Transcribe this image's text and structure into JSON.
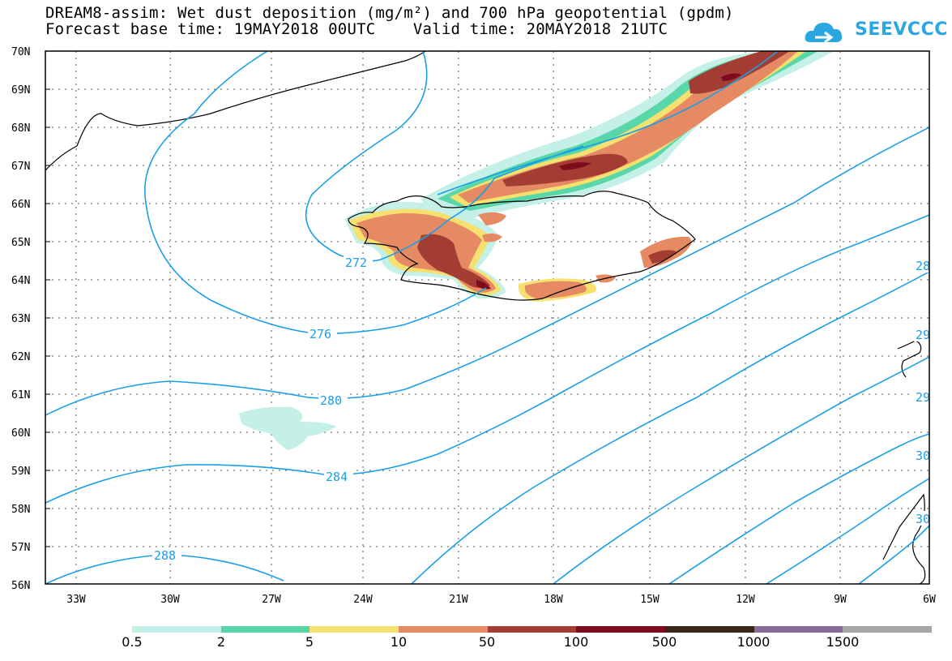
{
  "header": {
    "title_line1": "DREAM8-assim: Wet dust deposition (mg/m²) and 700 hPa geopotential (gpdm)",
    "title_line2": "Forecast base time: 19MAY2018 00UTC    Valid time: 20MAY2018 21UTC",
    "logo_text": "SEEVCCC",
    "logo_icon": "cloud-logo-icon"
  },
  "map": {
    "lat_labels": [
      "70N",
      "69N",
      "68N",
      "67N",
      "66N",
      "65N",
      "64N",
      "63N",
      "62N",
      "61N",
      "60N",
      "59N",
      "58N",
      "57N",
      "56N"
    ],
    "lon_labels": [
      "33W",
      "30W",
      "27W",
      "24W",
      "21W",
      "18W",
      "15W",
      "12W",
      "9W",
      "6W"
    ],
    "contour_labels": [
      "272",
      "276",
      "280",
      "284",
      "288",
      "28",
      "29",
      "29",
      "30",
      "30"
    ],
    "contour_color": "#1a9fe6"
  },
  "legend": {
    "colors": [
      "#c4f0e8",
      "#5ad7a8",
      "#f5e070",
      "#e58a62",
      "#a33d34",
      "#7e0a1e",
      "#3b2418",
      "#8a6a9a",
      "#a6a6a6"
    ],
    "labels": [
      "0.5",
      "2",
      "5",
      "10",
      "50",
      "100",
      "500",
      "1000",
      "1500"
    ]
  }
}
